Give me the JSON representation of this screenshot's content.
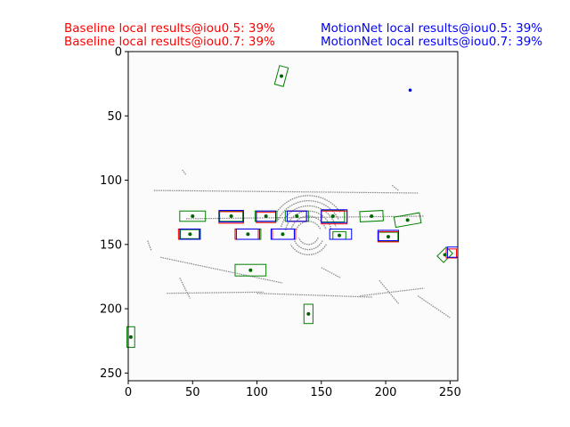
{
  "header": {
    "baseline_lines": [
      "Baseline local results@iou0.5: 39%",
      "Baseline local results@iou0.7: 39%"
    ],
    "motionnet_lines": [
      "MotionNet local results@iou0.5: 39%",
      "MotionNet local results@iou0.7: 39%"
    ]
  },
  "chart_data": {
    "type": "scatter",
    "image_size": [
      256,
      256
    ],
    "xlim": [
      0,
      256
    ],
    "ylim": [
      256,
      0
    ],
    "x_ticks": [
      0,
      50,
      100,
      150,
      200,
      250
    ],
    "y_ticks": [
      0,
      50,
      100,
      150,
      200,
      250
    ],
    "grid": false,
    "background_color": "#fbfbfb",
    "point_cloud_color": "#888888",
    "colors": {
      "ground_truth": "#008000",
      "baseline": "#ff0000",
      "motionnet": "#0000ff",
      "centers": "#006400"
    },
    "point_cloud_arcs": [
      {
        "cx": 140,
        "cy": 142,
        "r": 10,
        "start": 200,
        "end": 340
      },
      {
        "cx": 140,
        "cy": 142,
        "r": 14,
        "start": 195,
        "end": 345
      },
      {
        "cx": 140,
        "cy": 142,
        "r": 18,
        "start": 190,
        "end": 350
      },
      {
        "cx": 140,
        "cy": 142,
        "r": 22,
        "start": 195,
        "end": 345
      },
      {
        "cx": 140,
        "cy": 142,
        "r": 26,
        "start": 205,
        "end": 335
      },
      {
        "cx": 140,
        "cy": 142,
        "r": 30,
        "start": 215,
        "end": 325
      },
      {
        "cx": 140,
        "cy": 142,
        "r": 8,
        "start": 20,
        "end": 160
      },
      {
        "cx": 140,
        "cy": 142,
        "r": 12,
        "start": 25,
        "end": 155
      },
      {
        "cx": 140,
        "cy": 142,
        "r": 16,
        "start": 30,
        "end": 150
      }
    ],
    "point_cloud_lines": [
      [
        20,
        108,
        225,
        110
      ],
      [
        45,
        130,
        230,
        128
      ],
      [
        25,
        160,
        120,
        180
      ],
      [
        30,
        188,
        105,
        187
      ],
      [
        100,
        188,
        190,
        191
      ],
      [
        180,
        190,
        230,
        184
      ],
      [
        225,
        190,
        250,
        207
      ],
      [
        40,
        176,
        48,
        192
      ],
      [
        150,
        168,
        165,
        176
      ],
      [
        195,
        178,
        210,
        196
      ],
      [
        42,
        92,
        45,
        96
      ],
      [
        15,
        147,
        18,
        155
      ],
      [
        205,
        104,
        210,
        108
      ]
    ],
    "ground_truth_boxes": [
      {
        "cx": 119,
        "cy": 19,
        "w": 7,
        "h": 15,
        "angle": 15
      },
      {
        "cx": 50,
        "cy": 128,
        "w": 20,
        "h": 8,
        "angle": 0
      },
      {
        "cx": 80,
        "cy": 128,
        "w": 18,
        "h": 8,
        "angle": 0
      },
      {
        "cx": 107,
        "cy": 128,
        "w": 17,
        "h": 8,
        "angle": 0
      },
      {
        "cx": 131,
        "cy": 128,
        "w": 18,
        "h": 8,
        "angle": 0
      },
      {
        "cx": 159,
        "cy": 128,
        "w": 18,
        "h": 9,
        "angle": 0
      },
      {
        "cx": 189,
        "cy": 128,
        "w": 18,
        "h": 8,
        "angle": -3
      },
      {
        "cx": 217,
        "cy": 131,
        "w": 20,
        "h": 8,
        "angle": -10
      },
      {
        "cx": 48,
        "cy": 142,
        "w": 15,
        "h": 7,
        "angle": 0
      },
      {
        "cx": 93,
        "cy": 142,
        "w": 20,
        "h": 8,
        "angle": 0
      },
      {
        "cx": 120,
        "cy": 142,
        "w": 18,
        "h": 8,
        "angle": 0
      },
      {
        "cx": 164,
        "cy": 143,
        "w": 10,
        "h": 6,
        "angle": 0
      },
      {
        "cx": 202,
        "cy": 144,
        "w": 15,
        "h": 7,
        "angle": 0
      },
      {
        "cx": 95,
        "cy": 170,
        "w": 24,
        "h": 9,
        "angle": 0
      },
      {
        "cx": 140,
        "cy": 204,
        "w": 7,
        "h": 15,
        "angle": 0
      },
      {
        "cx": 2,
        "cy": 222,
        "w": 6,
        "h": 16,
        "angle": 0
      },
      {
        "cx": 246,
        "cy": 158,
        "w": 7,
        "h": 10,
        "angle": 45
      }
    ],
    "baseline_boxes": [
      {
        "cx": 80,
        "cy": 129,
        "w": 19,
        "h": 9,
        "angle": 0
      },
      {
        "cx": 107,
        "cy": 129,
        "w": 15,
        "h": 8,
        "angle": 0
      },
      {
        "cx": 131,
        "cy": 128,
        "w": 15,
        "h": 8,
        "angle": 0
      },
      {
        "cx": 160,
        "cy": 129,
        "w": 20,
        "h": 10,
        "angle": 0
      },
      {
        "cx": 47,
        "cy": 142,
        "w": 16,
        "h": 8,
        "angle": 0
      },
      {
        "cx": 92,
        "cy": 142,
        "w": 18,
        "h": 8,
        "angle": 0
      },
      {
        "cx": 121,
        "cy": 142,
        "w": 18,
        "h": 8,
        "angle": 0
      },
      {
        "cx": 202,
        "cy": 144,
        "w": 16,
        "h": 8,
        "angle": 0
      },
      {
        "cx": 251,
        "cy": 157,
        "w": 8,
        "h": 7,
        "angle": 0
      }
    ],
    "motionnet_boxes": [
      {
        "cx": 80,
        "cy": 128,
        "w": 19,
        "h": 9,
        "angle": 0
      },
      {
        "cx": 107,
        "cy": 128,
        "w": 15,
        "h": 8,
        "angle": 0
      },
      {
        "cx": 131,
        "cy": 128,
        "w": 15,
        "h": 8,
        "angle": 0
      },
      {
        "cx": 160,
        "cy": 128,
        "w": 20,
        "h": 10,
        "angle": 0
      },
      {
        "cx": 48,
        "cy": 142,
        "w": 16,
        "h": 8,
        "angle": 0
      },
      {
        "cx": 93,
        "cy": 142,
        "w": 18,
        "h": 8,
        "angle": 0
      },
      {
        "cx": 120,
        "cy": 142,
        "w": 18,
        "h": 8,
        "angle": 0
      },
      {
        "cx": 165,
        "cy": 142,
        "w": 17,
        "h": 8,
        "angle": 0
      },
      {
        "cx": 202,
        "cy": 143,
        "w": 16,
        "h": 8,
        "angle": 0
      },
      {
        "cx": 252,
        "cy": 156,
        "w": 8,
        "h": 8,
        "angle": 0
      }
    ],
    "motionnet_points": [
      {
        "x": 219,
        "y": 30
      }
    ]
  }
}
